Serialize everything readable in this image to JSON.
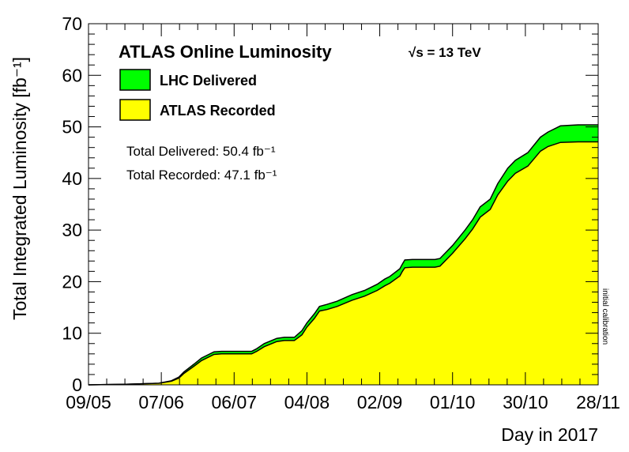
{
  "chart_data": {
    "type": "area",
    "title": "ATLAS Online Luminosity",
    "energy_label": "√s = 13 TeV",
    "xlabel": "Day in 2017",
    "ylabel": "Total Integrated Luminosity [fb⁻¹]",
    "x_tick_labels": [
      "09/05",
      "07/06",
      "06/07",
      "04/08",
      "02/09",
      "01/10",
      "30/10",
      "28/11"
    ],
    "xlim_days": [
      0,
      203
    ],
    "ylim": [
      0,
      70
    ],
    "y_ticks": [
      0,
      10,
      20,
      30,
      40,
      50,
      60,
      70
    ],
    "annotation": "initial calibration",
    "stats": {
      "delivered": "Total Delivered: 50.4 fb⁻¹",
      "recorded": "Total Recorded: 47.1 fb⁻¹"
    },
    "series": [
      {
        "name": "LHC Delivered",
        "color": "#00ff00",
        "x": [
          0,
          15,
          28,
          33,
          36,
          38,
          42,
          45,
          50,
          53,
          56,
          58,
          60,
          65,
          67,
          70,
          75,
          78,
          80,
          82,
          85,
          87,
          90,
          92,
          95,
          99,
          105,
          110,
          115,
          118,
          120,
          124,
          125,
          126,
          129,
          133,
          136,
          138,
          140,
          145,
          150,
          153,
          156,
          160,
          163,
          167,
          170,
          175,
          180,
          183,
          188,
          195,
          203
        ],
        "values": [
          0,
          0.1,
          0.3,
          0.8,
          1.5,
          2.5,
          4,
          5.2,
          6.4,
          6.5,
          6.5,
          6.5,
          6.5,
          6.5,
          7,
          8,
          9,
          9.2,
          9.2,
          9.2,
          10.5,
          12,
          13.8,
          15.2,
          15.6,
          16.2,
          17.5,
          18.3,
          19.5,
          20.5,
          21,
          22.5,
          23.4,
          24.2,
          24.3,
          24.3,
          24.3,
          24.3,
          24.5,
          27,
          30,
          32,
          34.5,
          36,
          39,
          42,
          43.5,
          45,
          48,
          49,
          50.2,
          50.4,
          50.4
        ]
      },
      {
        "name": "ATLAS Recorded",
        "color": "#ffff00",
        "x": [
          0,
          15,
          28,
          33,
          36,
          38,
          42,
          45,
          50,
          53,
          56,
          58,
          60,
          65,
          67,
          70,
          75,
          78,
          80,
          82,
          85,
          87,
          90,
          92,
          95,
          99,
          105,
          110,
          115,
          118,
          120,
          124,
          125,
          126,
          129,
          133,
          136,
          138,
          140,
          145,
          150,
          153,
          156,
          160,
          163,
          167,
          170,
          175,
          180,
          183,
          188,
          195,
          203
        ],
        "values": [
          0,
          0.1,
          0.3,
          0.7,
          1.3,
          2.2,
          3.6,
          4.7,
          5.9,
          6.0,
          6.0,
          6.0,
          6.0,
          6.0,
          6.5,
          7.4,
          8.4,
          8.6,
          8.6,
          8.6,
          9.7,
          11.2,
          12.9,
          14.3,
          14.6,
          15.2,
          16.4,
          17.2,
          18.3,
          19.2,
          19.7,
          21.1,
          22.0,
          22.7,
          22.8,
          22.8,
          22.8,
          22.8,
          23.0,
          25.5,
          28.3,
          30.2,
          32.5,
          34.0,
          36.8,
          39.5,
          41.0,
          42.4,
          45.3,
          46.2,
          47.0,
          47.1,
          47.1
        ]
      }
    ]
  }
}
